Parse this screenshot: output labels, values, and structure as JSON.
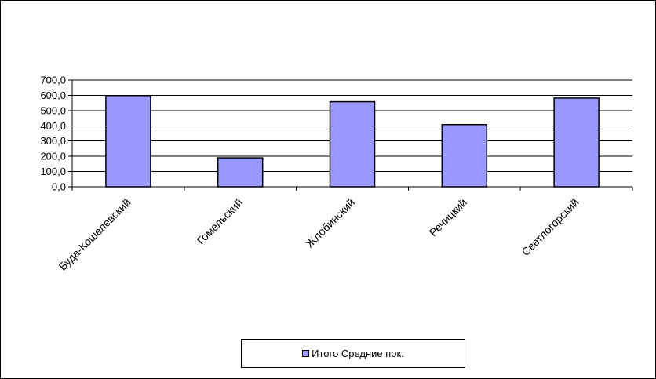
{
  "chart_data": {
    "type": "bar",
    "title": "",
    "xlabel": "",
    "ylabel": "",
    "categories": [
      "Буда-Кошелевский",
      "Гомельский",
      "Жлобинский",
      "Речицкий",
      "Светлогорский"
    ],
    "series": [
      {
        "name": "Итого Средние  пок.",
        "values": [
          598.0,
          190.0,
          558.0,
          408.0,
          582.0
        ]
      }
    ],
    "ylim": [
      0,
      700
    ],
    "yticks": [
      "0,0",
      "100,0",
      "200,0",
      "300,0",
      "400,0",
      "500,0",
      "600,0",
      "700,0"
    ],
    "grid": true,
    "legend_position": "bottom",
    "colors": {
      "bar": "#9999ff",
      "bar_border": "#000000",
      "grid": "#000000",
      "background": "#ffffff"
    }
  }
}
